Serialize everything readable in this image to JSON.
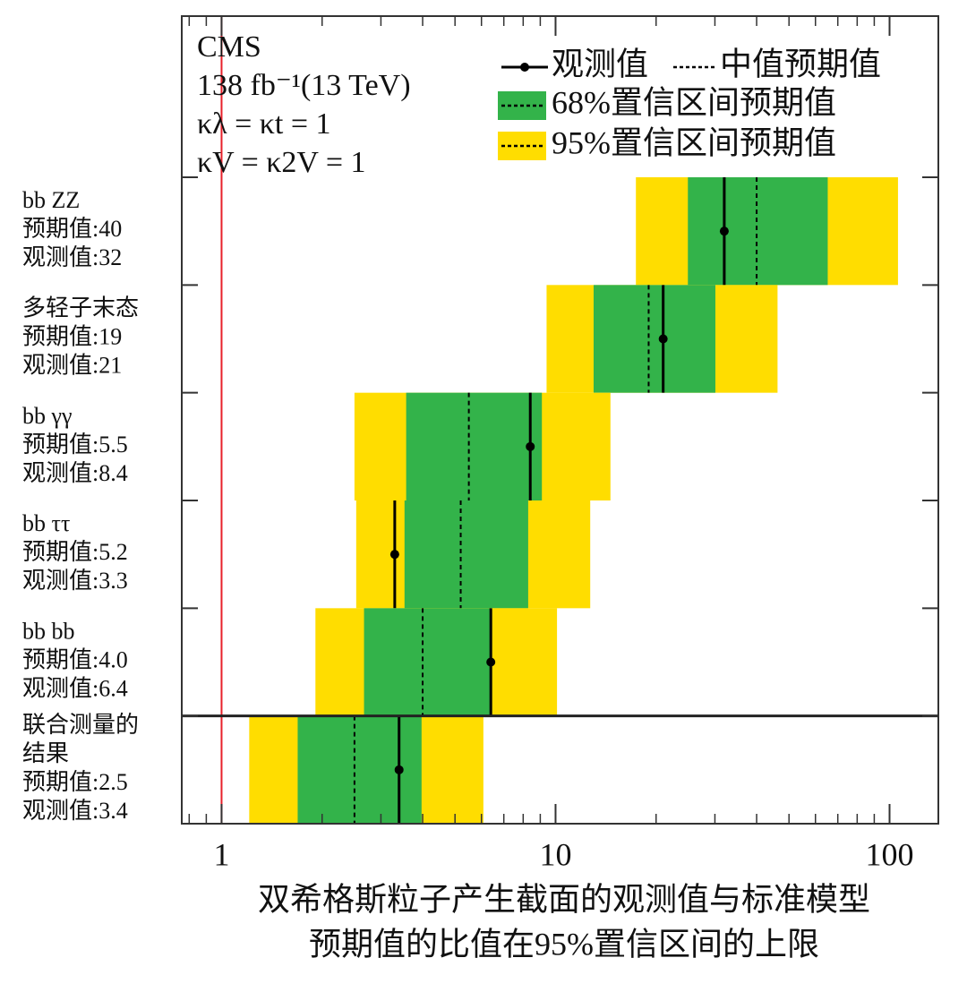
{
  "chart_data": {
    "type": "limit",
    "annotations": [
      "CMS",
      "138 fb⁻¹(13 TeV)",
      "κλ = κt = 1",
      "κV = κ2V = 1"
    ],
    "categories": [
      [
        "bb ZZ"
      ],
      [
        "多轻子末态"
      ],
      [
        "bb γγ"
      ],
      [
        "bb ττ"
      ],
      [
        "bb bb"
      ],
      [
        "联合测量的",
        "结果"
      ]
    ],
    "expected_prefix": "预期值:",
    "observed_prefix": "观测值:",
    "series": [
      {
        "name": "观测值",
        "color": "#000000",
        "values": [
          32,
          21,
          8.4,
          3.3,
          6.4,
          3.4
        ],
        "value_labels": [
          "32",
          "21",
          "8.4",
          "3.3",
          "6.4",
          "3.4"
        ]
      },
      {
        "name": "中值预期值",
        "color": "#000000",
        "values": [
          40,
          19,
          5.5,
          5.2,
          4.0,
          2.5
        ],
        "value_labels": [
          "40",
          "19",
          "5.5",
          "5.2",
          "4.0",
          "2.5"
        ]
      },
      {
        "name": "68%置信区间预期值",
        "color": "#33b34a",
        "low": [
          24.9,
          13.0,
          3.57,
          3.53,
          2.67,
          1.69
        ],
        "high": [
          65.3,
          30.1,
          9.1,
          8.28,
          6.39,
          3.97
        ]
      },
      {
        "name": "95%置信区间预期值",
        "color": "#ffdd00",
        "low": [
          17.4,
          9.4,
          2.5,
          2.53,
          1.91,
          1.21
        ],
        "high": [
          106,
          46.2,
          14.6,
          12.7,
          10.1,
          6.08
        ]
      }
    ],
    "xscale": "log",
    "xlim": [
      0.76,
      140
    ],
    "xticks": [
      1,
      10,
      100
    ],
    "xminorticks": [
      0.8,
      0.9,
      2,
      3,
      4,
      5,
      6,
      7,
      8,
      9,
      20,
      30,
      40,
      50,
      60,
      70,
      80,
      90
    ],
    "reference_line": {
      "value": 1,
      "color": "#e8202a"
    },
    "xlabel": [
      "双希格斯粒子产生截面的观测值与标准模型",
      "预期值的比值在95%置信区间的上限"
    ]
  }
}
